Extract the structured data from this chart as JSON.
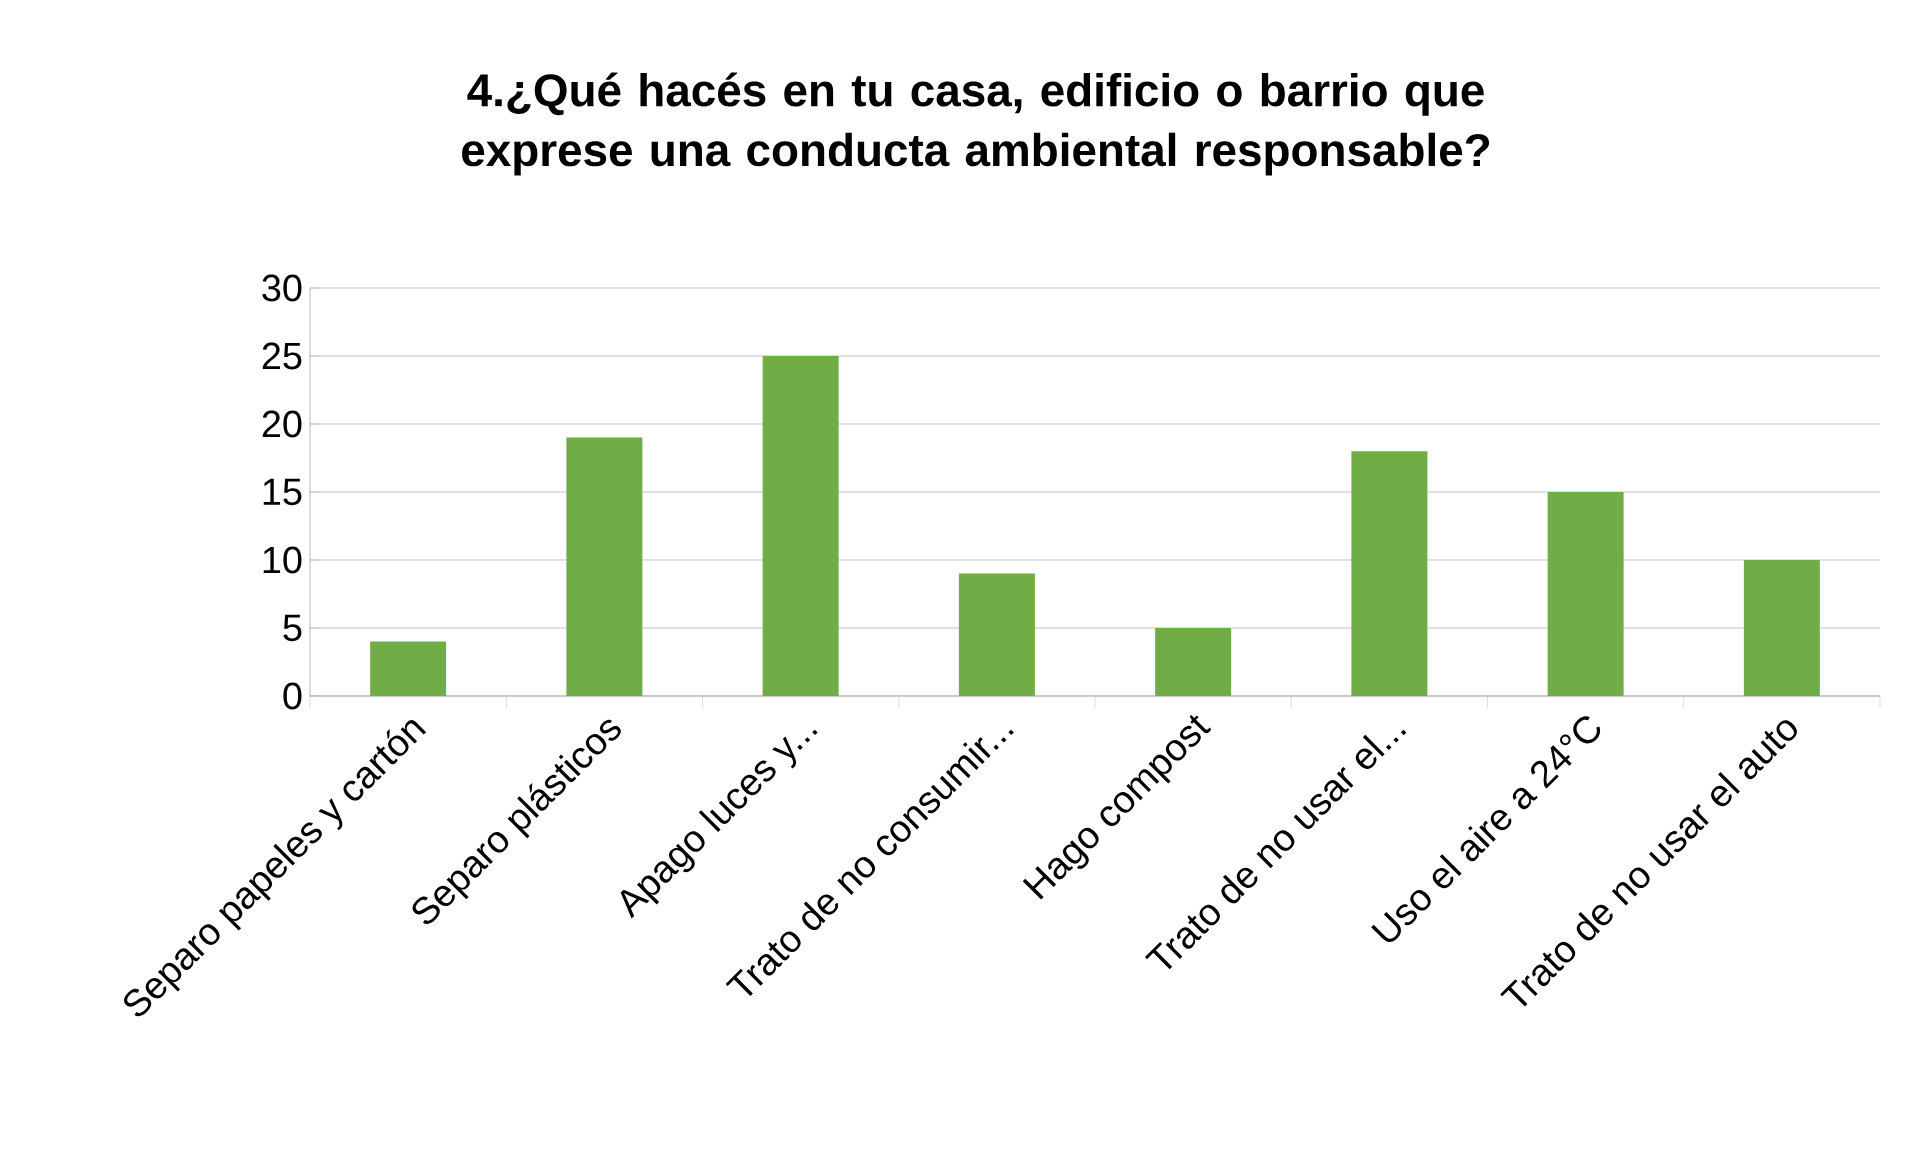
{
  "chart_data": {
    "type": "bar",
    "title": "4.¿Qué hacés en tu casa, edificio o barrio que exprese una conducta ambiental responsable?",
    "categories": [
      "Separo papeles y cartón",
      "Separo plásticos",
      "Apago luces y...",
      "Trato de no consumir...",
      "Hago compost",
      "Trato de no usar el...",
      "Uso el aire a 24°C",
      "Trato de no usar el auto"
    ],
    "values": [
      4,
      19,
      25,
      9,
      5,
      18,
      15,
      10
    ],
    "color": "#70ad47",
    "ylim": [
      0,
      30
    ],
    "yticks": [
      0,
      5,
      10,
      15,
      20,
      25,
      30
    ],
    "grid": "y"
  }
}
